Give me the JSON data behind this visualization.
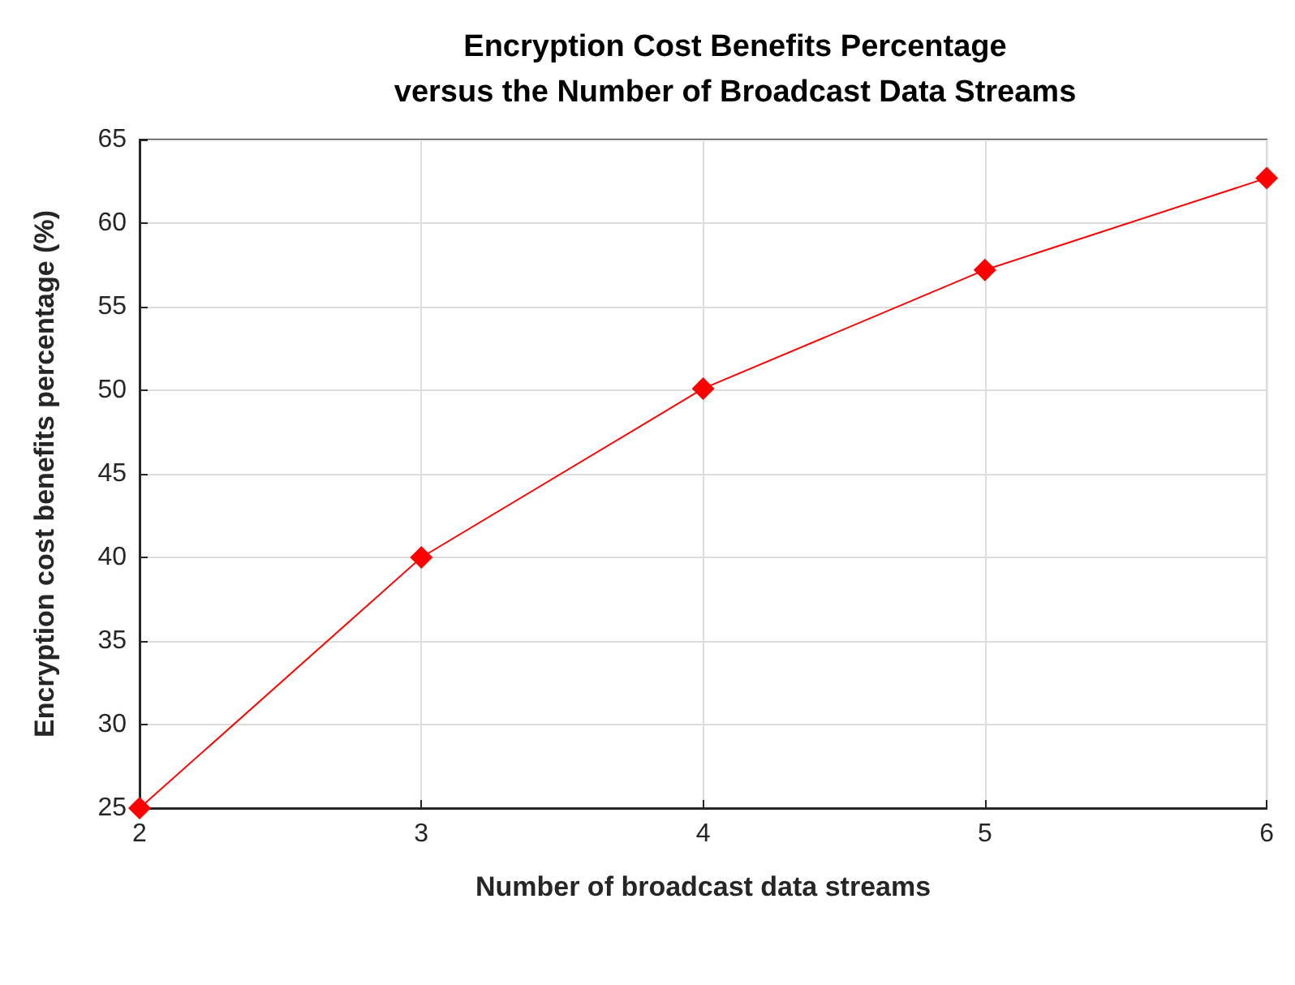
{
  "chart_data": {
    "type": "line",
    "title": "Encryption Cost Benefits Percentage\nversus the Number of Broadcast Data Streams",
    "xlabel": "Number of broadcast data streams",
    "ylabel": "Encryption cost benefits percentage (%)",
    "x": [
      2,
      3,
      4,
      5,
      6
    ],
    "series": [
      {
        "color": "#ff0000",
        "values": [
          25,
          40,
          50.1,
          57.2,
          62.7
        ]
      }
    ],
    "xlim": [
      2,
      6
    ],
    "xticks": [
      2,
      3,
      4,
      5,
      6
    ],
    "ylim": [
      25,
      65
    ],
    "yticks": [
      25,
      30,
      35,
      40,
      45,
      50,
      55,
      60,
      65
    ],
    "grid": true,
    "marker": "diamond",
    "line_style": "solid"
  }
}
